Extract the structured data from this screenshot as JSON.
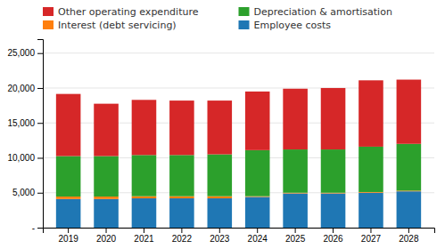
{
  "chart_data": {
    "type": "bar",
    "stacked": true,
    "grid": true,
    "legend": "top",
    "categories": [
      "2019",
      "2020",
      "2021",
      "2022",
      "2023",
      "2024",
      "2025",
      "2026",
      "2027",
      "2028"
    ],
    "series": [
      {
        "name": "Employee costs",
        "values": [
          4100,
          4100,
          4200,
          4200,
          4200,
          4400,
          4900,
          4900,
          5000,
          5200
        ]
      },
      {
        "name": "Interest (debt servicing)",
        "values": [
          350,
          350,
          300,
          300,
          300,
          100,
          100,
          100,
          100,
          100
        ]
      },
      {
        "name": "Depreciation & amortisation",
        "values": [
          5800,
          5800,
          5900,
          5900,
          6000,
          6600,
          6200,
          6200,
          6500,
          6700
        ]
      },
      {
        "name": "Other operating expenditure",
        "values": [
          8900,
          7500,
          7900,
          7800,
          7700,
          8400,
          8700,
          8800,
          9500,
          9200
        ]
      }
    ],
    "ylim": [
      0,
      27000
    ],
    "yticks": [
      {
        "value": 0,
        "label": "-"
      },
      {
        "value": 5000,
        "label": "5,000"
      },
      {
        "value": 10000,
        "label": "10,000"
      },
      {
        "value": 15000,
        "label": "15,000"
      },
      {
        "value": 20000,
        "label": "20,000"
      },
      {
        "value": 25000,
        "label": "25,000"
      }
    ]
  }
}
